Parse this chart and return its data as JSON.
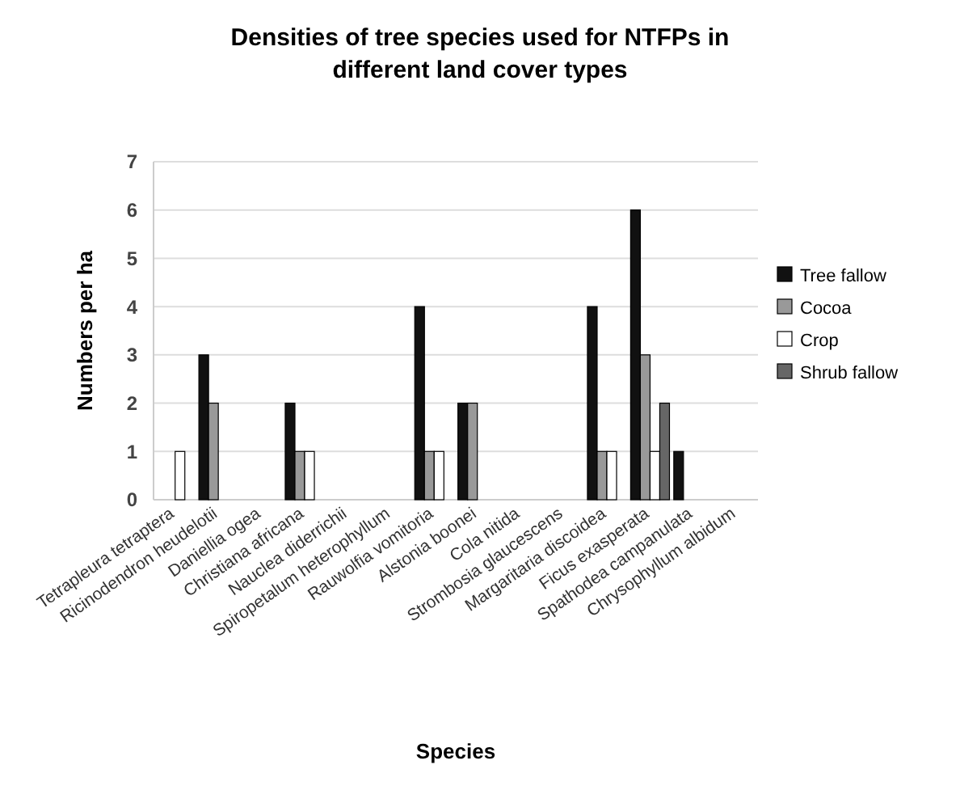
{
  "chart_data": {
    "type": "bar",
    "title": "Densities of tree species used for NTFPs in different land cover types",
    "xlabel": "Species",
    "ylabel": "Numbers per ha",
    "categories": [
      "Tetrapleura tetraptera",
      "Ricinodendron heudelotii",
      "Daniellia ogea",
      "Christiana africana",
      "Nauclea diderrichii",
      "Spiropetalum heterophyllum",
      "Rauwolfia vomitoria",
      "Alstonia boonei",
      "Cola nitida",
      "Strombosia glaucescens",
      "Margaritaria discoidea",
      "Ficus exasperata",
      "Spathodea campanulata",
      "Chrysophyllum albidum"
    ],
    "series": [
      {
        "name": "Tree fallow",
        "color": "#111111",
        "values": [
          0,
          3,
          0,
          2,
          0,
          0,
          4,
          2,
          0,
          0,
          4,
          6,
          1,
          0
        ]
      },
      {
        "name": "Cocoa",
        "color": "#999999",
        "values": [
          0,
          2,
          0,
          1,
          0,
          0,
          1,
          2,
          0,
          0,
          1,
          3,
          0,
          0
        ]
      },
      {
        "name": "Crop",
        "color": "#ffffff",
        "values": [
          1,
          0,
          0,
          1,
          0,
          0,
          1,
          0,
          0,
          0,
          1,
          1,
          0,
          0
        ]
      },
      {
        "name": "Shrub fallow",
        "color": "#666666",
        "values": [
          0,
          0,
          0,
          0,
          0,
          0,
          0,
          0,
          0,
          0,
          0,
          2,
          0,
          0
        ]
      }
    ],
    "ylim": [
      0,
      7
    ],
    "yticks": [
      0,
      1,
      2,
      3,
      4,
      5,
      6,
      7
    ],
    "grid": "y",
    "legend": "right"
  }
}
